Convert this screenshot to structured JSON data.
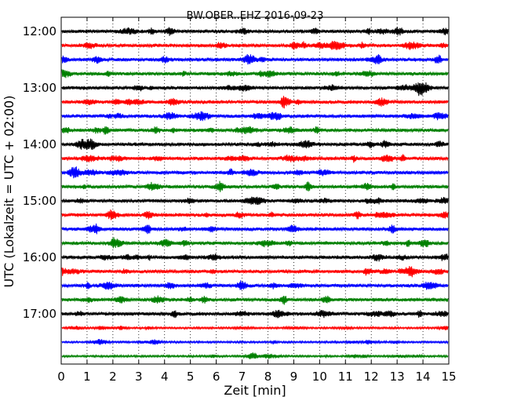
{
  "chart_data": {
    "type": "line",
    "title": "BW.OBER..EHZ 2016-09-23",
    "xlabel": "Zeit  [min]",
    "ylabel": "UTC (Lokalzeit = UTC + 02:00)",
    "xlim": [
      0,
      15
    ],
    "x_ticks": [
      "0",
      "1",
      "2",
      "3",
      "4",
      "5",
      "6",
      "7",
      "8",
      "9",
      "10",
      "11",
      "12",
      "13",
      "14",
      "15"
    ],
    "y_ticks": [
      "12:00",
      "13:00",
      "14:00",
      "15:00",
      "16:00",
      "17:00"
    ],
    "grid": "vertical dotted",
    "trace_colors": [
      "#000000",
      "#ff0000",
      "#0000ff",
      "#008000"
    ],
    "traces": [
      {
        "start": "12:00",
        "color": "#000000"
      },
      {
        "start": "12:15",
        "color": "#ff0000"
      },
      {
        "start": "12:30",
        "color": "#0000ff"
      },
      {
        "start": "12:45",
        "color": "#008000"
      },
      {
        "start": "13:00",
        "color": "#000000"
      },
      {
        "start": "13:15",
        "color": "#ff0000"
      },
      {
        "start": "13:30",
        "color": "#0000ff"
      },
      {
        "start": "13:45",
        "color": "#008000"
      },
      {
        "start": "14:00",
        "color": "#000000"
      },
      {
        "start": "14:15",
        "color": "#ff0000"
      },
      {
        "start": "14:30",
        "color": "#0000ff"
      },
      {
        "start": "14:45",
        "color": "#008000"
      },
      {
        "start": "15:00",
        "color": "#000000"
      },
      {
        "start": "15:15",
        "color": "#ff0000"
      },
      {
        "start": "15:30",
        "color": "#0000ff"
      },
      {
        "start": "15:45",
        "color": "#008000"
      },
      {
        "start": "16:00",
        "color": "#000000"
      },
      {
        "start": "16:15",
        "color": "#ff0000"
      },
      {
        "start": "16:30",
        "color": "#0000ff"
      },
      {
        "start": "16:45",
        "color": "#008000"
      },
      {
        "start": "17:00",
        "color": "#000000"
      },
      {
        "start": "17:15",
        "color": "#ff0000"
      },
      {
        "start": "17:30",
        "color": "#0000ff"
      },
      {
        "start": "17:45",
        "color": "#008000"
      }
    ]
  }
}
